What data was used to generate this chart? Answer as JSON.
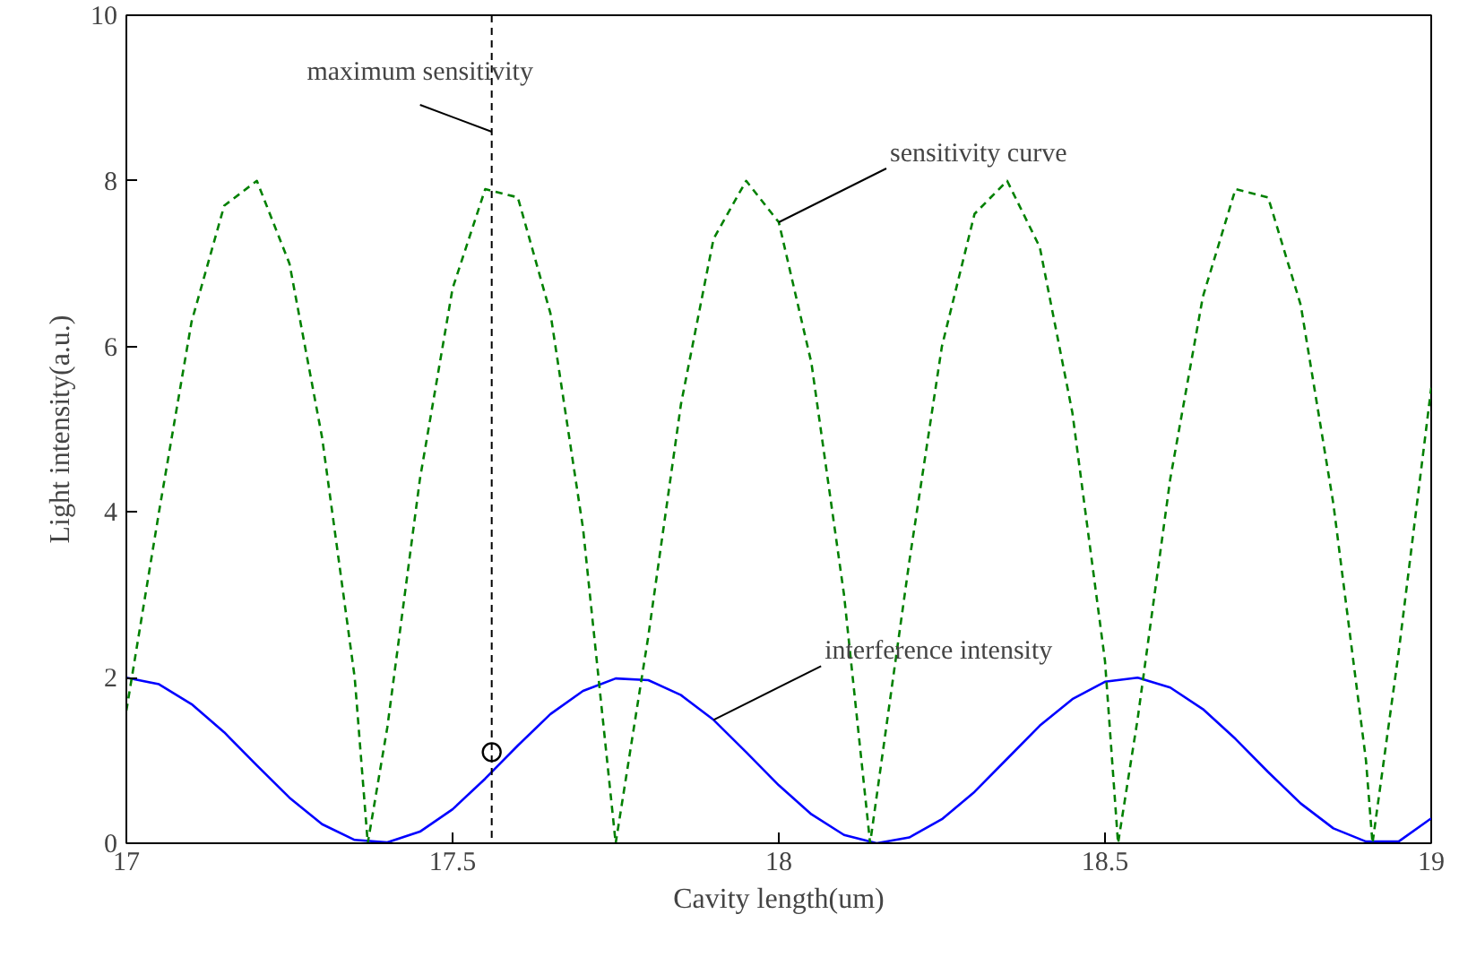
{
  "chart_data": {
    "type": "line",
    "xlabel": "Cavity length(um)",
    "ylabel": "Light intensity(a.u.)",
    "xlim": [
      17,
      19
    ],
    "ylim": [
      0,
      10
    ],
    "xticks": [
      17,
      17.5,
      18,
      18.5,
      19
    ],
    "yticks": [
      0,
      2,
      4,
      6,
      8,
      10
    ],
    "grid": false,
    "series": [
      {
        "color": "#0000ff",
        "line_style": "solid",
        "x": [
          17.0,
          17.05,
          17.1,
          17.15,
          17.2,
          17.25,
          17.3,
          17.35,
          17.4,
          17.45,
          17.5,
          17.55,
          17.6,
          17.65,
          17.7,
          17.75,
          17.8,
          17.85,
          17.9,
          17.95,
          18.0,
          18.05,
          18.1,
          18.15,
          18.2,
          18.25,
          18.3,
          18.35,
          18.4,
          18.45,
          18.5,
          18.55,
          18.6,
          18.65,
          18.7,
          18.75,
          18.8,
          18.85,
          18.9,
          18.95,
          19.0
        ],
        "values": [
          2.0,
          1.92,
          1.68,
          1.34,
          0.94,
          0.55,
          0.23,
          0.04,
          0.01,
          0.14,
          0.41,
          0.78,
          1.18,
          1.56,
          1.84,
          1.99,
          1.97,
          1.79,
          1.49,
          1.1,
          0.7,
          0.35,
          0.1,
          0.0,
          0.07,
          0.29,
          0.62,
          1.02,
          1.42,
          1.74,
          1.95,
          2.0,
          1.88,
          1.62,
          1.26,
          0.86,
          0.48,
          0.18,
          0.02,
          0.02,
          0.3
        ]
      },
      {
        "color": "#008000",
        "line_style": "dashed",
        "x": [
          17.0,
          17.05,
          17.1,
          17.15,
          17.2,
          17.25,
          17.3,
          17.35,
          17.37,
          17.4,
          17.45,
          17.5,
          17.55,
          17.6,
          17.65,
          17.7,
          17.75,
          17.8,
          17.85,
          17.9,
          17.95,
          18.0,
          18.05,
          18.1,
          18.14,
          18.2,
          18.25,
          18.3,
          18.35,
          18.4,
          18.45,
          18.5,
          18.52,
          18.55,
          18.6,
          18.65,
          18.7,
          18.75,
          18.8,
          18.85,
          18.9,
          18.91,
          18.95,
          19.0
        ],
        "values": [
          1.6,
          4.0,
          6.3,
          7.7,
          8.0,
          7.0,
          4.9,
          2.0,
          0.0,
          1.4,
          4.4,
          6.7,
          7.9,
          7.8,
          6.4,
          3.8,
          0.0,
          2.5,
          5.3,
          7.3,
          8.0,
          7.5,
          5.8,
          3.0,
          0.0,
          3.4,
          6.0,
          7.6,
          8.0,
          7.2,
          5.2,
          2.2,
          0.0,
          1.5,
          4.4,
          6.6,
          7.9,
          7.8,
          6.5,
          4.1,
          1.0,
          0.0,
          2.3,
          5.5
        ]
      },
      {
        "type": "scatter",
        "color": "#000000",
        "marker": "circle",
        "x": [
          17.56
        ],
        "values": [
          1.1
        ]
      }
    ],
    "ref_lines": [
      {
        "axis": "x",
        "value": 17.56,
        "label": "maximum sensitivity",
        "color": "#000000",
        "line_style": "dashed"
      }
    ],
    "annotations": [
      {
        "text": "sensitivity curve",
        "x": 18.0,
        "y": 7.5
      },
      {
        "text": "interference intensity",
        "x": 17.9,
        "y": 1.49
      }
    ]
  }
}
